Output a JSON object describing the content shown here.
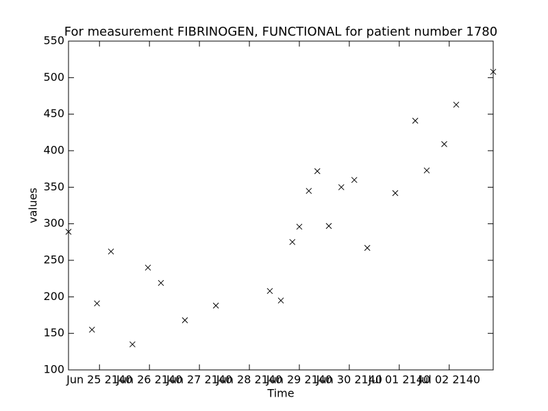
{
  "chart_data": {
    "type": "scatter",
    "title": "For measurement FIBRINOGEN, FUNCTIONAL for patient number 1780",
    "x_label": "Time",
    "y_label": "values",
    "x": [
      -0.62,
      -0.15,
      -0.05,
      0.23,
      0.66,
      0.97,
      1.23,
      1.71,
      2.33,
      3.41,
      3.63,
      3.86,
      4.0,
      4.19,
      4.36,
      4.59,
      4.84,
      5.1,
      5.36,
      5.92,
      6.32,
      6.55,
      6.9,
      7.14,
      7.88
    ],
    "values": [
      289,
      155,
      191,
      262,
      135,
      240,
      219,
      168,
      188,
      208,
      195,
      275,
      296,
      345,
      372,
      297,
      350,
      360,
      267,
      342,
      441,
      373,
      409,
      463,
      508
    ],
    "color": "#000000",
    "marker": "x",
    "xlim": [
      -0.62,
      7.88
    ],
    "xticks": [
      {
        "value": 0,
        "label": "Jun 25 2140"
      },
      {
        "value": 1,
        "label": "Jun 26 2140"
      },
      {
        "value": 2,
        "label": "Jun 27 2140"
      },
      {
        "value": 3,
        "label": "Jun 28 2140"
      },
      {
        "value": 4,
        "label": "Jun 29 2140"
      },
      {
        "value": 5,
        "label": "Jun 30 2140"
      },
      {
        "value": 6,
        "label": "Jul 01 2140"
      },
      {
        "value": 7,
        "label": "Jul 02 2140"
      }
    ],
    "ylim": [
      100,
      550
    ],
    "yticks": [
      100,
      150,
      200,
      250,
      300,
      350,
      400,
      450,
      500,
      550
    ],
    "grid": false
  }
}
